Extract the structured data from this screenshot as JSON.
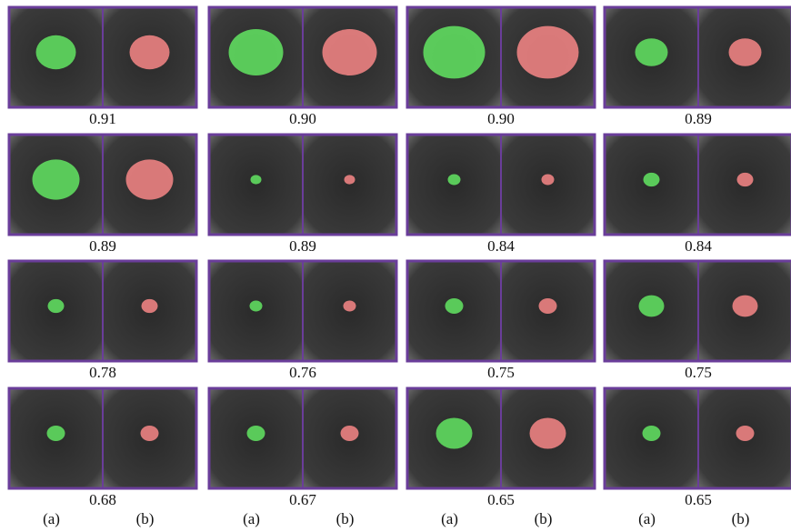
{
  "rows": [
    {
      "cells": [
        {
          "score": "0.91"
        },
        {
          "score": "0.90"
        },
        {
          "score": "0.90"
        },
        {
          "score": "0.89"
        }
      ]
    },
    {
      "cells": [
        {
          "score": "0.89"
        },
        {
          "score": "0.89"
        },
        {
          "score": "0.84"
        },
        {
          "score": "0.84"
        }
      ]
    },
    {
      "cells": [
        {
          "score": "0.78"
        },
        {
          "score": "0.76"
        },
        {
          "score": "0.75"
        },
        {
          "score": "0.75"
        }
      ]
    },
    {
      "cells": [
        {
          "score": "0.68"
        },
        {
          "score": "0.67"
        },
        {
          "score": "0.65"
        },
        {
          "score": "0.65"
        }
      ]
    }
  ],
  "bottom_labels": [
    "(a)",
    "(b)",
    "(a)",
    "(b)",
    "(a)",
    "(b)",
    "(a)",
    "(b)"
  ]
}
